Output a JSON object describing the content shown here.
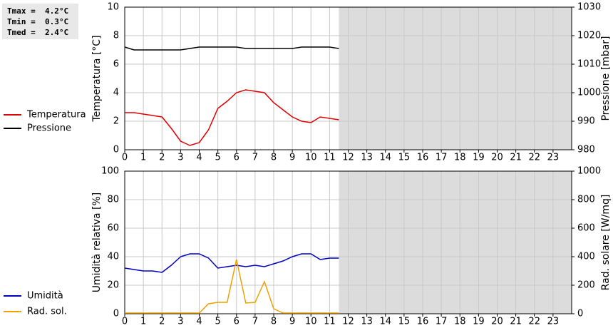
{
  "chart_data": [
    {
      "type": "line",
      "annotations": [
        "Tmax =  4.2°C",
        "Tmin =  0.3°C",
        "Tmed =  2.4°C"
      ],
      "ylabel": "Temperatura [°C]",
      "y2label": "Pressione [mbar]",
      "xlim": [
        0,
        24
      ],
      "xticks": [
        0,
        1,
        2,
        3,
        4,
        5,
        6,
        7,
        8,
        9,
        10,
        11,
        12,
        13,
        14,
        15,
        16,
        17,
        18,
        19,
        20,
        21,
        22,
        23
      ],
      "ylim": [
        0,
        10
      ],
      "yticks": [
        0,
        2,
        4,
        6,
        8,
        10
      ],
      "y2lim": [
        980,
        1030
      ],
      "y2ticks": [
        980,
        990,
        1000,
        1010,
        1020,
        1030
      ],
      "grid": true,
      "legend": "left",
      "x": [
        0,
        0.5,
        1,
        1.5,
        2,
        2.5,
        3,
        3.5,
        4,
        4.5,
        5,
        5.5,
        6,
        6.5,
        7,
        7.5,
        8,
        8.5,
        9,
        9.5,
        10,
        10.5,
        11,
        11.5
      ],
      "series": [
        {
          "name": "Temperatura",
          "color": "#e00000",
          "values": [
            2.6,
            2.6,
            2.5,
            2.4,
            2.3,
            1.5,
            0.6,
            0.3,
            0.5,
            1.4,
            2.9,
            3.4,
            4.0,
            4.2,
            4.1,
            4.0,
            3.3,
            2.8,
            2.3,
            2.0,
            1.9,
            2.3,
            2.2,
            2.1
          ]
        },
        {
          "name": "Pressione",
          "color": "#000000",
          "axis": "y2",
          "values": [
            1016,
            1015,
            1015,
            1015,
            1015,
            1015,
            1015,
            1015.5,
            1016,
            1016,
            1016,
            1016,
            1016,
            1015.5,
            1015.5,
            1015.5,
            1015.5,
            1015.5,
            1015.5,
            1016,
            1016,
            1016,
            1016,
            1015.5
          ]
        }
      ]
    },
    {
      "type": "line",
      "ylabel": "Umidità relativa [%]",
      "y2label": "Rad. solare [W/mq]",
      "xlim": [
        0,
        24
      ],
      "xticks": [
        0,
        1,
        2,
        3,
        4,
        5,
        6,
        7,
        8,
        9,
        10,
        11,
        12,
        13,
        14,
        15,
        16,
        17,
        18,
        19,
        20,
        21,
        22,
        23
      ],
      "ylim": [
        0,
        100
      ],
      "yticks": [
        0,
        20,
        40,
        60,
        80,
        100
      ],
      "y2lim": [
        0,
        1000
      ],
      "y2ticks": [
        0,
        200,
        400,
        600,
        800,
        1000
      ],
      "grid": true,
      "legend": "left",
      "x": [
        0,
        0.5,
        1,
        1.5,
        2,
        2.5,
        3,
        3.5,
        4,
        4.5,
        5,
        5.5,
        6,
        6.5,
        7,
        7.5,
        8,
        8.5,
        9,
        9.5,
        10,
        10.5,
        11,
        11.5
      ],
      "series": [
        {
          "name": "Umidità",
          "color": "#0000c0",
          "values": [
            32,
            31,
            30,
            30,
            29,
            34,
            40,
            42,
            42,
            39,
            32,
            33,
            34,
            33,
            34,
            33,
            35,
            37,
            40,
            42,
            42,
            38,
            39,
            39
          ]
        },
        {
          "name": "Rad. sol.",
          "color": "#f0a000",
          "axis": "y2",
          "values": [
            5,
            5,
            5,
            5,
            5,
            5,
            5,
            5,
            5,
            70,
            80,
            80,
            380,
            75,
            80,
            225,
            35,
            5,
            5,
            5,
            5,
            5,
            5,
            5
          ]
        }
      ]
    }
  ]
}
